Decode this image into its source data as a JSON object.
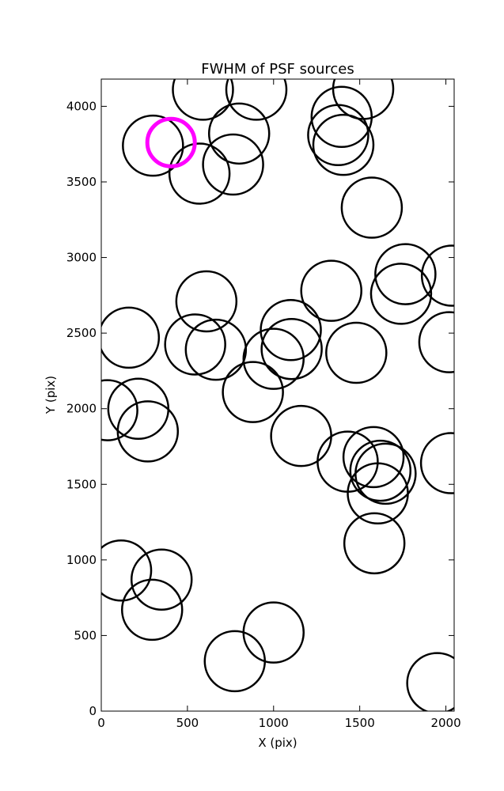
{
  "chart_data": {
    "type": "scatter",
    "title": "FWHM of PSF sources",
    "xlabel": "X (pix)",
    "ylabel": "Y (pix)",
    "xlim": [
      0,
      2048
    ],
    "ylim": [
      0,
      4180
    ],
    "xticks": [
      0,
      500,
      1000,
      1500,
      2000
    ],
    "yticks": [
      0,
      500,
      1000,
      1500,
      2000,
      2500,
      3000,
      3500,
      4000
    ],
    "grid": false,
    "marker": "circle",
    "marker_color": "#000000",
    "highlight_color": "#ff00ff",
    "series": [
      {
        "points": [
          {
            "x": 590,
            "y": 4110
          },
          {
            "x": 900,
            "y": 4110
          },
          {
            "x": 1520,
            "y": 4115
          },
          {
            "x": 1395,
            "y": 3930
          },
          {
            "x": 1375,
            "y": 3810
          },
          {
            "x": 1405,
            "y": 3745
          },
          {
            "x": 800,
            "y": 3820
          },
          {
            "x": 300,
            "y": 3740
          },
          {
            "x": 570,
            "y": 3555
          },
          {
            "x": 765,
            "y": 3615
          },
          {
            "x": 1570,
            "y": 3330
          },
          {
            "x": 1765,
            "y": 2890
          },
          {
            "x": 2035,
            "y": 2880
          },
          {
            "x": 1740,
            "y": 2760
          },
          {
            "x": 1335,
            "y": 2780
          },
          {
            "x": 610,
            "y": 2710
          },
          {
            "x": 1100,
            "y": 2520
          },
          {
            "x": 1105,
            "y": 2395
          },
          {
            "x": 160,
            "y": 2470
          },
          {
            "x": 545,
            "y": 2425
          },
          {
            "x": 665,
            "y": 2390
          },
          {
            "x": 1480,
            "y": 2370
          },
          {
            "x": 1000,
            "y": 2330
          },
          {
            "x": 2020,
            "y": 2440
          },
          {
            "x": 880,
            "y": 2110
          },
          {
            "x": 35,
            "y": 1990
          },
          {
            "x": 215,
            "y": 2000
          },
          {
            "x": 270,
            "y": 1850
          },
          {
            "x": 1160,
            "y": 1820
          },
          {
            "x": 1430,
            "y": 1650
          },
          {
            "x": 1580,
            "y": 1680
          },
          {
            "x": 1620,
            "y": 1590
          },
          {
            "x": 1650,
            "y": 1570
          },
          {
            "x": 2030,
            "y": 1640
          },
          {
            "x": 1605,
            "y": 1440
          },
          {
            "x": 1585,
            "y": 1110
          },
          {
            "x": 115,
            "y": 930
          },
          {
            "x": 350,
            "y": 870
          },
          {
            "x": 295,
            "y": 670
          },
          {
            "x": 1000,
            "y": 520
          },
          {
            "x": 775,
            "y": 330
          },
          {
            "x": 1950,
            "y": 185
          }
        ]
      }
    ],
    "highlight": {
      "x": 405,
      "y": 3760
    }
  }
}
